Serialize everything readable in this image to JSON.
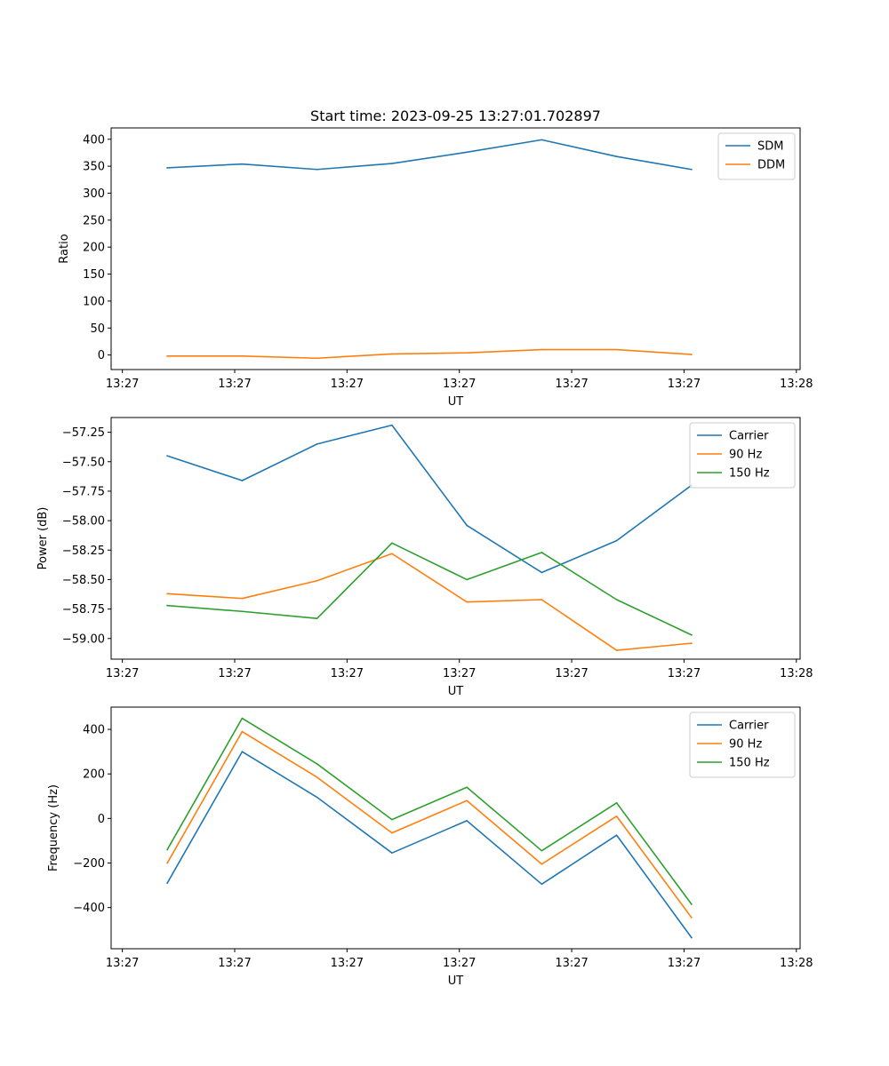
{
  "figure": {
    "title": "Start time: 2023-09-25 13:27:01.702897"
  },
  "chart_data": [
    {
      "type": "line",
      "title": "Start time: 2023-09-25 13:27:01.702897",
      "xlabel": "UT",
      "ylabel": "Ratio",
      "x": [
        0,
        1,
        2,
        3,
        4,
        5,
        6,
        7
      ],
      "xlim": [
        -0.75,
        8.45
      ],
      "x_ticks": [
        -0.6,
        0.9,
        2.4,
        3.9,
        5.4,
        6.9,
        8.4
      ],
      "x_tick_labels": [
        "13:27",
        "13:27",
        "13:27",
        "13:27",
        "13:27",
        "13:27",
        "13:28"
      ],
      "ylim": [
        -27,
        421
      ],
      "y_ticks": [
        0,
        50,
        100,
        150,
        200,
        250,
        300,
        350,
        400
      ],
      "y_tick_labels": [
        "0",
        "50",
        "100",
        "150",
        "200",
        "250",
        "300",
        "350",
        "400"
      ],
      "legend_position": "top-right",
      "series": [
        {
          "name": "SDM",
          "color": "#1f77b4",
          "values": [
            347,
            354,
            344,
            355,
            376,
            399,
            368,
            344
          ]
        },
        {
          "name": "DDM",
          "color": "#ff7f0e",
          "values": [
            -2,
            -2,
            -6,
            2,
            4,
            10,
            10,
            1
          ]
        }
      ]
    },
    {
      "type": "line",
      "xlabel": "UT",
      "ylabel": "Power (dB)",
      "x": [
        0,
        1,
        2,
        3,
        4,
        5,
        6,
        7
      ],
      "xlim": [
        -0.75,
        8.45
      ],
      "x_ticks": [
        -0.6,
        0.9,
        2.4,
        3.9,
        5.4,
        6.9,
        8.4
      ],
      "x_tick_labels": [
        "13:27",
        "13:27",
        "13:27",
        "13:27",
        "13:27",
        "13:27",
        "13:28"
      ],
      "ylim": [
        -59.175,
        -57.125
      ],
      "y_ticks": [
        -59.0,
        -58.75,
        -58.5,
        -58.25,
        -58.0,
        -57.75,
        -57.5,
        -57.25
      ],
      "y_tick_labels": [
        "−59.00",
        "−58.75",
        "−58.50",
        "−58.25",
        "−58.00",
        "−57.75",
        "−57.50",
        "−57.25"
      ],
      "legend_position": "top-right",
      "series": [
        {
          "name": "Carrier",
          "color": "#1f77b4",
          "values": [
            -57.45,
            -57.66,
            -57.35,
            -57.19,
            -58.04,
            -58.44,
            -58.17,
            -57.7
          ]
        },
        {
          "name": "90 Hz",
          "color": "#ff7f0e",
          "values": [
            -58.62,
            -58.66,
            -58.51,
            -58.28,
            -58.69,
            -58.67,
            -59.1,
            -59.04
          ]
        },
        {
          "name": "150 Hz",
          "color": "#2ca02c",
          "values": [
            -58.72,
            -58.77,
            -58.83,
            -58.19,
            -58.5,
            -58.27,
            -58.67,
            -58.97
          ]
        }
      ]
    },
    {
      "type": "line",
      "xlabel": "UT",
      "ylabel": "Frequency (Hz)",
      "x": [
        0,
        1,
        2,
        3,
        4,
        5,
        6,
        7
      ],
      "xlim": [
        -0.75,
        8.45
      ],
      "x_ticks": [
        -0.6,
        0.9,
        2.4,
        3.9,
        5.4,
        6.9,
        8.4
      ],
      "x_tick_labels": [
        "13:27",
        "13:27",
        "13:27",
        "13:27",
        "13:27",
        "13:27",
        "13:28"
      ],
      "ylim": [
        -585,
        500
      ],
      "y_ticks": [
        -400,
        -200,
        0,
        200,
        400
      ],
      "y_tick_labels": [
        "−400",
        "−200",
        "0",
        "200",
        "400"
      ],
      "legend_position": "top-right",
      "series": [
        {
          "name": "Carrier",
          "color": "#1f77b4",
          "values": [
            -290,
            300,
            95,
            -155,
            -10,
            -295,
            -75,
            -535
          ]
        },
        {
          "name": "90 Hz",
          "color": "#ff7f0e",
          "values": [
            -200,
            390,
            185,
            -65,
            80,
            -205,
            10,
            -445
          ]
        },
        {
          "name": "150 Hz",
          "color": "#2ca02c",
          "values": [
            -140,
            450,
            245,
            -5,
            140,
            -145,
            70,
            -385
          ]
        }
      ]
    }
  ]
}
